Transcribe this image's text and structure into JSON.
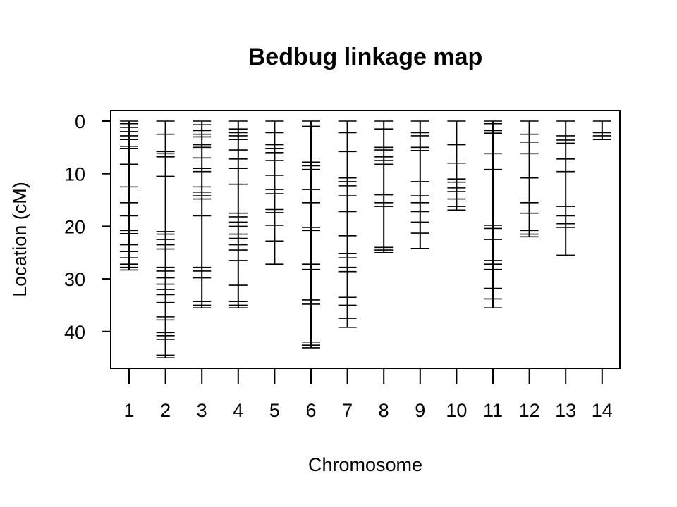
{
  "chart_data": {
    "type": "linkage-map",
    "title": "Bedbug linkage map",
    "xlabel": "Chromosome",
    "ylabel": "Location (cM)",
    "ylim": [
      0,
      47
    ],
    "y_reversed": true,
    "yticks": [
      0,
      10,
      20,
      30,
      40
    ],
    "line_color": "#000000",
    "chromosomes": [
      {
        "label": "1",
        "markers": [
          0,
          0.5,
          1.2,
          2.0,
          2.8,
          3.5,
          4.8,
          5.2,
          8.2,
          12.5,
          15.5,
          18.0,
          20.8,
          21.4,
          23.5,
          24.8,
          26.0,
          27.2,
          27.8,
          28.3
        ]
      },
      {
        "label": "2",
        "markers": [
          0,
          2.5,
          5.8,
          6.2,
          6.8,
          10.5,
          21.0,
          21.5,
          22.5,
          23.5,
          24.3,
          27.8,
          28.5,
          29.8,
          31.0,
          32.0,
          33.0,
          34.5,
          37.2,
          37.8,
          40.2,
          40.8,
          41.5,
          44.5,
          45.0
        ]
      },
      {
        "label": "3",
        "markers": [
          0,
          0.7,
          1.8,
          2.5,
          3.0,
          4.5,
          5.0,
          7.0,
          9.0,
          9.6,
          12.5,
          13.5,
          14.2,
          14.8,
          18.0,
          27.8,
          28.5,
          29.8,
          34.3,
          35.0,
          35.5
        ]
      },
      {
        "label": "4",
        "markers": [
          0,
          1.5,
          2.2,
          2.8,
          3.5,
          5.5,
          7.2,
          9.0,
          12.0,
          17.5,
          18.2,
          19.2,
          20.0,
          21.5,
          22.3,
          23.5,
          24.5,
          26.5,
          31.2,
          34.3,
          35.0,
          35.5
        ]
      },
      {
        "label": "5",
        "markers": [
          0,
          2.2,
          4.5,
          5.2,
          6.0,
          7.5,
          10.3,
          13.0,
          13.8,
          16.8,
          17.4,
          19.8,
          22.8,
          27.2
        ]
      },
      {
        "label": "6",
        "markers": [
          0,
          1.0,
          7.8,
          8.5,
          9.2,
          13.0,
          15.5,
          20.2,
          20.8,
          27.2,
          28.2,
          34.0,
          34.8,
          42.0,
          42.6,
          43.1
        ]
      },
      {
        "label": "7",
        "markers": [
          0,
          2.2,
          5.8,
          10.8,
          11.5,
          12.3,
          14.2,
          17.2,
          21.8,
          25.2,
          26.0,
          27.8,
          28.6,
          33.5,
          35.0,
          37.5,
          39.2
        ]
      },
      {
        "label": "8",
        "markers": [
          0,
          1.5,
          5.0,
          5.5,
          6.8,
          7.5,
          8.2,
          14.0,
          15.5,
          16.2,
          24.0,
          24.5,
          25.0
        ]
      },
      {
        "label": "9",
        "markers": [
          0,
          2.2,
          2.8,
          5.0,
          5.6,
          11.5,
          14.2,
          15.5,
          17.2,
          19.2,
          21.3,
          24.2
        ]
      },
      {
        "label": "10",
        "markers": [
          0,
          4.5,
          8.0,
          11.0,
          11.6,
          12.7,
          13.4,
          14.8,
          16.2,
          16.9
        ]
      },
      {
        "label": "11",
        "markers": [
          0,
          0.5,
          1.8,
          2.3,
          6.2,
          9.2,
          19.8,
          20.4,
          22.5,
          26.5,
          27.2,
          28.2,
          31.8,
          33.8,
          35.5
        ]
      },
      {
        "label": "12",
        "markers": [
          0,
          2.5,
          4.0,
          6.2,
          10.8,
          15.5,
          17.5,
          20.8,
          21.5,
          22.0
        ]
      },
      {
        "label": "13",
        "markers": [
          0,
          2.8,
          3.6,
          4.2,
          7.2,
          9.6,
          16.2,
          18.0,
          19.5,
          20.2,
          25.5
        ]
      },
      {
        "label": "14",
        "markers": [
          0,
          2.2,
          2.8,
          3.5
        ]
      }
    ]
  }
}
